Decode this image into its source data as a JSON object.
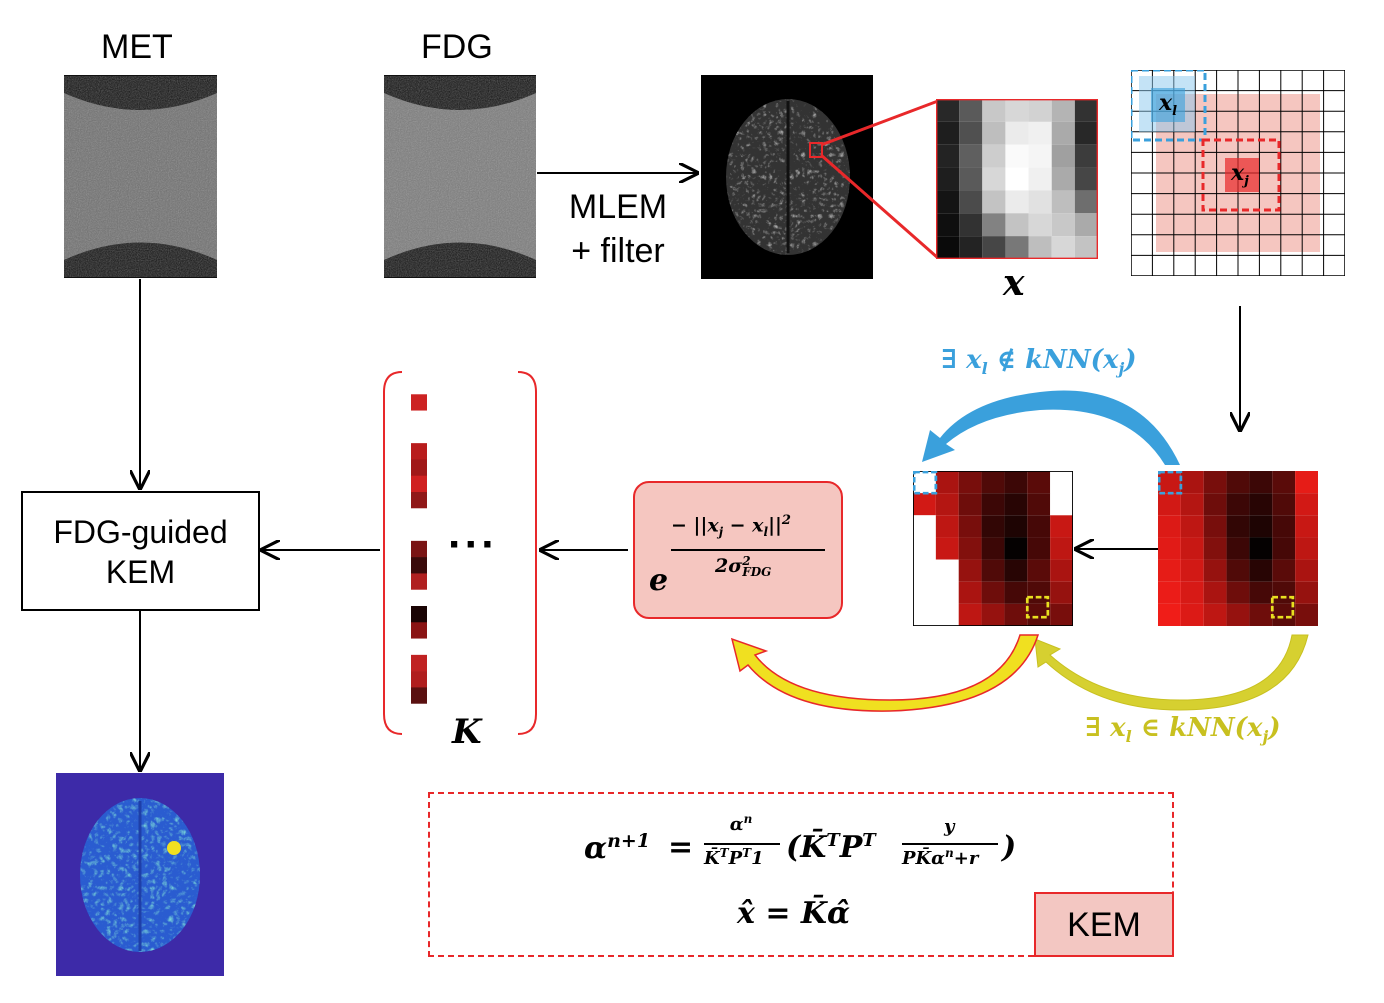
{
  "labels": {
    "met": "MET",
    "fdg": "FDG",
    "mlem_line1": "MLEM",
    "mlem_line2": "+ filter",
    "patch_var": "x",
    "xl": "x",
    "xl_sub": "l",
    "xj": "x",
    "xj_sub": "j",
    "not_knn": "∃ x",
    "not_knn_sub": "l",
    "not_knn_rest": " ∉ kNN(x",
    "not_knn_sub2": "j",
    "not_knn_end": ")",
    "in_knn": "∃ x",
    "in_knn_sub": "l",
    "in_knn_rest": " ∈ kNN(x",
    "in_knn_sub2": "j",
    "in_knn_end": ")",
    "kernel_e": "e",
    "kernel_num": "− ||x",
    "kernel_num_sub": "j",
    "kernel_num_mid": " − x",
    "kernel_num_sub2": "l",
    "kernel_num_end": "||",
    "kernel_num_pow": "2",
    "kernel_den": "2σ",
    "kernel_den_sup": "2",
    "kernel_den_sub": "FDG",
    "dots": "···",
    "kmatrix": "K",
    "kem_box_line1": "FDG-guided",
    "kem_box_line2": "KEM",
    "kem_tag": "KEM",
    "eq_alpha": "α",
    "eq_alpha_sup": "n+1",
    "eq_equals": "=",
    "eq_frac_num": "α",
    "eq_frac_num_sup": "n",
    "eq_frac_den": "K̄",
    "eq_frac_den_rest": "P",
    "eq_frac_den_one": "1",
    "eq_T": "T",
    "eq_paren_open": "(",
    "eq_kbar": "K̄",
    "eq_P": "P",
    "eq_y": "y",
    "eq_den2": "PK̄α",
    "eq_den2_sup": "n",
    "eq_den2_end": "+r",
    "eq_paren_close": ")",
    "eq2": "x̂ = K̄α̂"
  },
  "colors": {
    "red_accent": "#e8282a",
    "blue_accent": "#3aa0dc",
    "yellow_accent": "#c8c020",
    "pink_fill": "#f5c6c0",
    "kem_fill": "#f3c7c2",
    "dark_red": "#5a0c0c"
  },
  "kvector": [
    "#ffffff",
    "#cc2222",
    "#ffffff",
    "#ffffff",
    "#b81c1c",
    "#a01818",
    "#d02020",
    "#901818",
    "#ffffff",
    "#ffffff",
    "#7a1414",
    "#3a0a0a",
    "#b02020",
    "#ffffff",
    "#1a0404",
    "#8a1414",
    "#ffffff",
    "#c02222",
    "#b01e1e",
    "#5a1010",
    "#ffffff"
  ]
}
